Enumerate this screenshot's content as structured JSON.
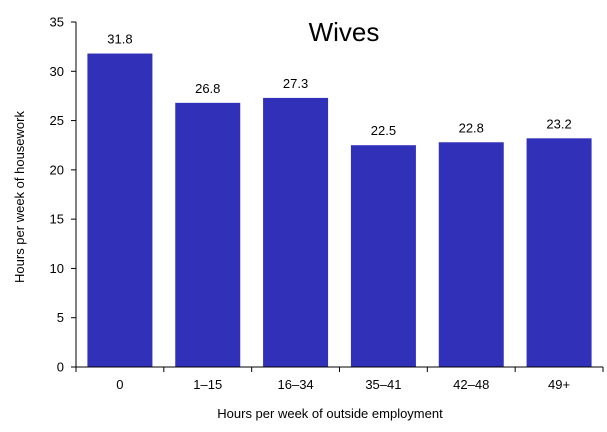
{
  "colors": {
    "bar": "#3030B8",
    "axis": "#000000",
    "background": "#ffffff"
  },
  "chart_data": {
    "type": "bar",
    "title": "Wives",
    "xlabel": "Hours per week of outside employment",
    "ylabel": "Hours per week of housework",
    "categories": [
      "0",
      "1–15",
      "16–34",
      "35–41",
      "42–48",
      "49+"
    ],
    "values": [
      31.8,
      26.8,
      27.3,
      22.5,
      22.8,
      23.2
    ],
    "data_labels": [
      "31.8",
      "26.8",
      "27.3",
      "22.5",
      "22.8",
      "23.2"
    ],
    "ylim": [
      0,
      35
    ],
    "yticks": [
      0,
      5,
      10,
      15,
      20,
      25,
      30,
      35
    ],
    "grid": false,
    "legend": "none"
  }
}
